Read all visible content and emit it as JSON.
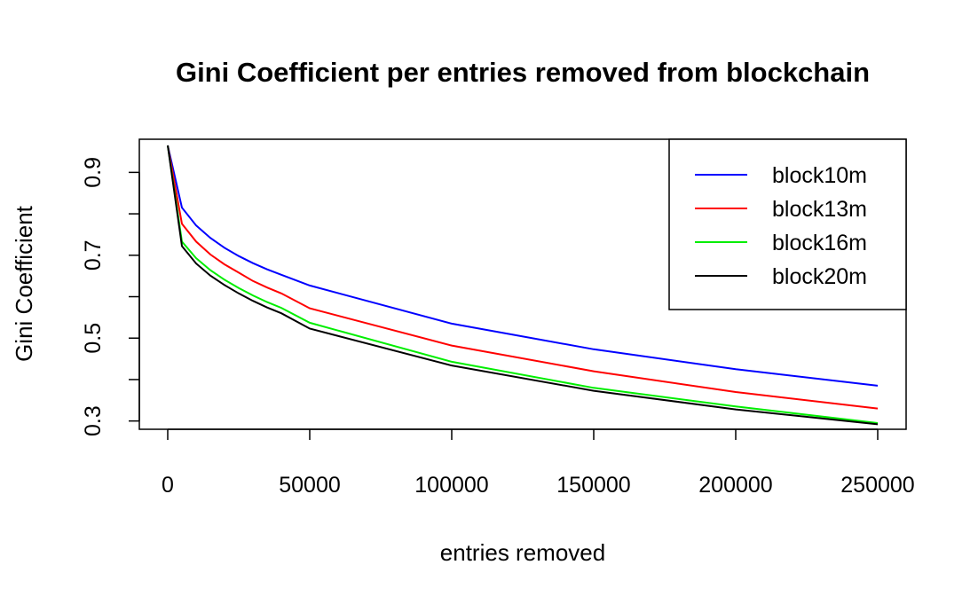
{
  "chart_data": {
    "type": "line",
    "title": "Gini Coefficient per entries removed from blockchain",
    "xlabel": "entries removed",
    "ylabel": "Gini Coefficient",
    "xlim": [
      -10000,
      260000
    ],
    "ylim": [
      0.28,
      0.98
    ],
    "x_ticks": [
      0,
      50000,
      100000,
      150000,
      200000,
      250000
    ],
    "x_tick_labels": [
      "0",
      "50000",
      "100000",
      "150000",
      "200000",
      "250000"
    ],
    "y_ticks": [
      0.3,
      0.4,
      0.5,
      0.6,
      0.7,
      0.8,
      0.9
    ],
    "y_tick_labels": [
      "0.3",
      "",
      "0.5",
      "",
      "0.7",
      "",
      "0.9"
    ],
    "grid": false,
    "legend_position": "top-right",
    "x": [
      0,
      5000,
      10000,
      15000,
      20000,
      25000,
      30000,
      35000,
      40000,
      50000,
      100000,
      150000,
      200000,
      250000
    ],
    "series": [
      {
        "name": "block10m",
        "color": "#0000ff",
        "values": [
          0.965,
          0.815,
          0.772,
          0.742,
          0.718,
          0.698,
          0.681,
          0.666,
          0.653,
          0.627,
          0.535,
          0.473,
          0.425,
          0.385
        ]
      },
      {
        "name": "block13m",
        "color": "#ff0000",
        "values": [
          0.965,
          0.776,
          0.733,
          0.702,
          0.678,
          0.658,
          0.638,
          0.622,
          0.608,
          0.572,
          0.482,
          0.42,
          0.37,
          0.33
        ]
      },
      {
        "name": "block16m",
        "color": "#00ee00",
        "values": [
          0.965,
          0.733,
          0.693,
          0.664,
          0.641,
          0.621,
          0.603,
          0.587,
          0.573,
          0.537,
          0.443,
          0.38,
          0.335,
          0.295
        ]
      },
      {
        "name": "block20m",
        "color": "#000000",
        "values": [
          0.965,
          0.722,
          0.68,
          0.651,
          0.628,
          0.608,
          0.59,
          0.574,
          0.56,
          0.523,
          0.434,
          0.373,
          0.328,
          0.292
        ]
      }
    ]
  }
}
